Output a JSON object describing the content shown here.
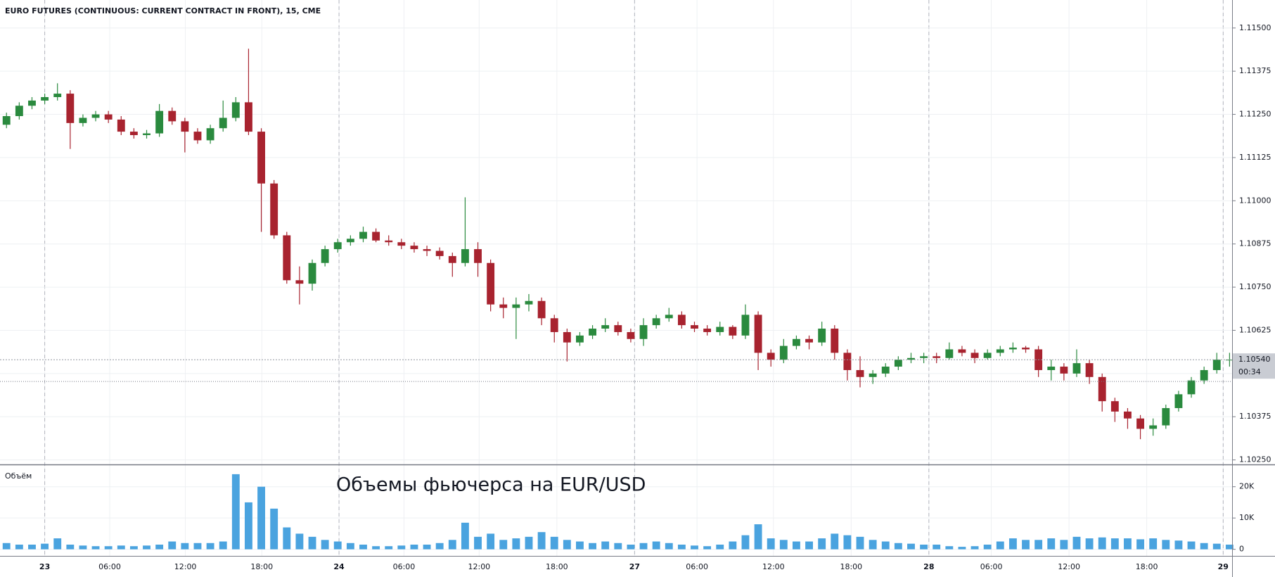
{
  "chart_data": [
    {
      "type": "candlestick",
      "title": "EURO FUTURES (CONTINUOUS: CURRENT CONTRACT IN FRONT), 15, CME",
      "up_color": "#2a8a3e",
      "down_color": "#a8232f",
      "open": [
        1.1122,
        1.11245,
        1.11275,
        1.1129,
        1.113,
        1.1131,
        1.11225,
        1.1124,
        1.1125,
        1.11235,
        1.112,
        1.1119,
        1.11195,
        1.1126,
        1.1123,
        1.112,
        1.11175,
        1.1121,
        1.1124,
        1.11285,
        1.112,
        1.1105,
        1.109,
        1.1077,
        1.1076,
        1.1082,
        1.1086,
        1.1088,
        1.1089,
        1.1091,
        1.10885,
        1.1088,
        1.1087,
        1.1086,
        1.10855,
        1.1084,
        1.1082,
        1.1086,
        1.1082,
        1.107,
        1.1069,
        1.107,
        1.1071,
        1.1066,
        1.1062,
        1.1059,
        1.1061,
        1.1063,
        1.1064,
        1.1062,
        1.106,
        1.1064,
        1.1066,
        1.1067,
        1.1064,
        1.1063,
        1.1062,
        1.10635,
        1.1061,
        1.1067,
        1.1056,
        1.1054,
        1.1058,
        1.106,
        1.1059,
        1.1063,
        1.1056,
        1.1051,
        1.1049,
        1.105,
        1.1052,
        1.1054,
        1.10545,
        1.1055,
        1.10545,
        1.1057,
        1.1056,
        1.10545,
        1.1056,
        1.1057,
        1.10575,
        1.1057,
        1.1051,
        1.1052,
        1.105,
        1.1053,
        1.1049,
        1.1042,
        1.1039,
        1.1037,
        1.1034,
        1.1035,
        1.104,
        1.1044,
        1.1048,
        1.1051,
        1.1054
      ],
      "high": [
        1.11255,
        1.11285,
        1.113,
        1.1131,
        1.1134,
        1.1132,
        1.1125,
        1.1126,
        1.1126,
        1.11245,
        1.1121,
        1.11205,
        1.1128,
        1.1127,
        1.1124,
        1.1121,
        1.1122,
        1.1129,
        1.113,
        1.1144,
        1.1121,
        1.1106,
        1.1091,
        1.1081,
        1.1083,
        1.1087,
        1.1089,
        1.109,
        1.10925,
        1.1092,
        1.109,
        1.1089,
        1.1088,
        1.1087,
        1.10865,
        1.1085,
        1.1101,
        1.1088,
        1.1083,
        1.1072,
        1.1072,
        1.1073,
        1.1072,
        1.1067,
        1.1063,
        1.1062,
        1.1064,
        1.1066,
        1.1065,
        1.1063,
        1.1066,
        1.1067,
        1.1069,
        1.1068,
        1.1065,
        1.1064,
        1.1065,
        1.1064,
        1.107,
        1.1068,
        1.1057,
        1.106,
        1.1061,
        1.1061,
        1.1065,
        1.1064,
        1.1057,
        1.1055,
        1.1051,
        1.1053,
        1.1055,
        1.1056,
        1.1056,
        1.1056,
        1.1059,
        1.1058,
        1.1057,
        1.1057,
        1.1058,
        1.1059,
        1.1058,
        1.1058,
        1.1054,
        1.1053,
        1.1057,
        1.1054,
        1.105,
        1.1043,
        1.104,
        1.1038,
        1.1037,
        1.1041,
        1.1045,
        1.1049,
        1.1052,
        1.1056,
        1.1056
      ],
      "low": [
        1.1121,
        1.11235,
        1.11265,
        1.1128,
        1.1129,
        1.1115,
        1.11215,
        1.1123,
        1.11225,
        1.1119,
        1.1118,
        1.1118,
        1.11185,
        1.1122,
        1.1114,
        1.11165,
        1.11165,
        1.112,
        1.1123,
        1.1119,
        1.1091,
        1.1089,
        1.1076,
        1.107,
        1.1074,
        1.1081,
        1.1085,
        1.1087,
        1.1088,
        1.1088,
        1.1087,
        1.1086,
        1.1085,
        1.1084,
        1.1083,
        1.1078,
        1.1081,
        1.1078,
        1.1068,
        1.1066,
        1.106,
        1.1068,
        1.1064,
        1.1059,
        1.10535,
        1.1058,
        1.106,
        1.1062,
        1.1061,
        1.1059,
        1.1058,
        1.1063,
        1.1065,
        1.1063,
        1.1062,
        1.1061,
        1.1061,
        1.106,
        1.106,
        1.1051,
        1.1052,
        1.1053,
        1.1057,
        1.1057,
        1.1058,
        1.1054,
        1.1048,
        1.1046,
        1.1047,
        1.1049,
        1.1051,
        1.1053,
        1.1053,
        1.1053,
        1.1054,
        1.1055,
        1.1053,
        1.1054,
        1.1055,
        1.1056,
        1.1056,
        1.1049,
        1.1048,
        1.1048,
        1.1049,
        1.1047,
        1.1039,
        1.1036,
        1.1034,
        1.1031,
        1.1032,
        1.1034,
        1.1039,
        1.1043,
        1.1047,
        1.105,
        1.1052
      ],
      "close": [
        1.11245,
        1.11275,
        1.1129,
        1.113,
        1.1131,
        1.11225,
        1.1124,
        1.1125,
        1.11235,
        1.112,
        1.1119,
        1.11195,
        1.1126,
        1.1123,
        1.112,
        1.11175,
        1.1121,
        1.1124,
        1.11285,
        1.112,
        1.1105,
        1.109,
        1.1077,
        1.1076,
        1.1082,
        1.1086,
        1.1088,
        1.1089,
        1.1091,
        1.10885,
        1.1088,
        1.1087,
        1.1086,
        1.10855,
        1.1084,
        1.1082,
        1.1086,
        1.1082,
        1.107,
        1.1069,
        1.107,
        1.1071,
        1.1066,
        1.1062,
        1.1059,
        1.1061,
        1.1063,
        1.1064,
        1.1062,
        1.106,
        1.1064,
        1.1066,
        1.1067,
        1.1064,
        1.1063,
        1.1062,
        1.10635,
        1.1061,
        1.1067,
        1.1056,
        1.1054,
        1.1058,
        1.106,
        1.1059,
        1.1063,
        1.1056,
        1.1051,
        1.1049,
        1.105,
        1.1052,
        1.1054,
        1.10545,
        1.1055,
        1.10545,
        1.1057,
        1.1056,
        1.10545,
        1.1056,
        1.1057,
        1.10575,
        1.1057,
        1.1051,
        1.1052,
        1.105,
        1.1053,
        1.1049,
        1.1042,
        1.1039,
        1.1037,
        1.1034,
        1.1035,
        1.104,
        1.1044,
        1.1048,
        1.1051,
        1.1054,
        1.1054
      ],
      "xlim": [
        -0.51,
        96.2
      ],
      "xticks": [
        {
          "value": 3,
          "label": "23"
        },
        {
          "value": 8.1,
          "label": "06:00"
        },
        {
          "value": 14.04,
          "label": "12:00"
        },
        {
          "value": 20.04,
          "label": "18:00"
        },
        {
          "value": 26.1,
          "label": "24"
        },
        {
          "value": 31.2,
          "label": "06:00"
        },
        {
          "value": 37.1,
          "label": "12:00"
        },
        {
          "value": 43.2,
          "label": "18:00"
        },
        {
          "value": 49.3,
          "label": "27"
        },
        {
          "value": 54.2,
          "label": "06:00"
        },
        {
          "value": 60.2,
          "label": "12:00"
        },
        {
          "value": 66.3,
          "label": "18:00"
        },
        {
          "value": 72.4,
          "label": "28"
        },
        {
          "value": 77.3,
          "label": "06:00"
        },
        {
          "value": 83.4,
          "label": "12:00"
        },
        {
          "value": 89.5,
          "label": "18:00"
        },
        {
          "value": 95.5,
          "label": "29"
        }
      ],
      "ylim": [
        1.10237,
        1.11581
      ],
      "yticks": [
        {
          "value": 1.1025,
          "label": "1.10250"
        },
        {
          "value": 1.10375,
          "label": "1.10375"
        },
        {
          "value": 1.105,
          "label": "1.10500"
        },
        {
          "value": 1.10625,
          "label": "1.10625"
        },
        {
          "value": 1.1075,
          "label": "1.10750"
        },
        {
          "value": 1.10875,
          "label": "1.10875"
        },
        {
          "value": 1.11,
          "label": "1.11000"
        },
        {
          "value": 1.11125,
          "label": "1.11125"
        },
        {
          "value": 1.1125,
          "label": "1.11250"
        },
        {
          "value": 1.11375,
          "label": "1.11375"
        },
        {
          "value": 1.115,
          "label": "1.11500"
        }
      ],
      "grid": true,
      "last_price": {
        "value": 1.1054,
        "label": "1.10540"
      },
      "countdown": "00:34",
      "reference_line": 1.10477
    },
    {
      "type": "bar",
      "title": "Объём",
      "annotation": "Объемы фьючерса на EUR/USD",
      "color": "#4aa3df",
      "values": [
        2000,
        1500,
        1500,
        1800,
        3500,
        1500,
        1200,
        1000,
        1000,
        1200,
        1000,
        1200,
        1500,
        2500,
        2000,
        2000,
        2000,
        2500,
        24000,
        15000,
        20000,
        13000,
        7000,
        5000,
        4000,
        3000,
        2500,
        2000,
        1500,
        1000,
        1000,
        1200,
        1500,
        1500,
        2000,
        3000,
        8500,
        4000,
        5000,
        3000,
        3500,
        4000,
        5500,
        4000,
        3000,
        2500,
        2000,
        2500,
        2000,
        1500,
        2000,
        2500,
        2000,
        1500,
        1200,
        1000,
        1500,
        2500,
        4500,
        8000,
        3500,
        3000,
        2500,
        2500,
        3500,
        5000,
        4500,
        4000,
        3000,
        2500,
        2000,
        1800,
        1500,
        1500,
        1000,
        800,
        1000,
        1500,
        2500,
        3500,
        3000,
        3000,
        3500,
        3000,
        4000,
        3500,
        3800,
        3500,
        3500,
        3200,
        3500,
        3000,
        2800,
        2500,
        2000,
        1800,
        1500
      ],
      "ylim": [
        -2100,
        26900
      ],
      "yticks": [
        0,
        {
          "value": 10000,
          "label": "10K"
        },
        {
          "value": 20000,
          "label": "20K"
        }
      ]
    }
  ]
}
